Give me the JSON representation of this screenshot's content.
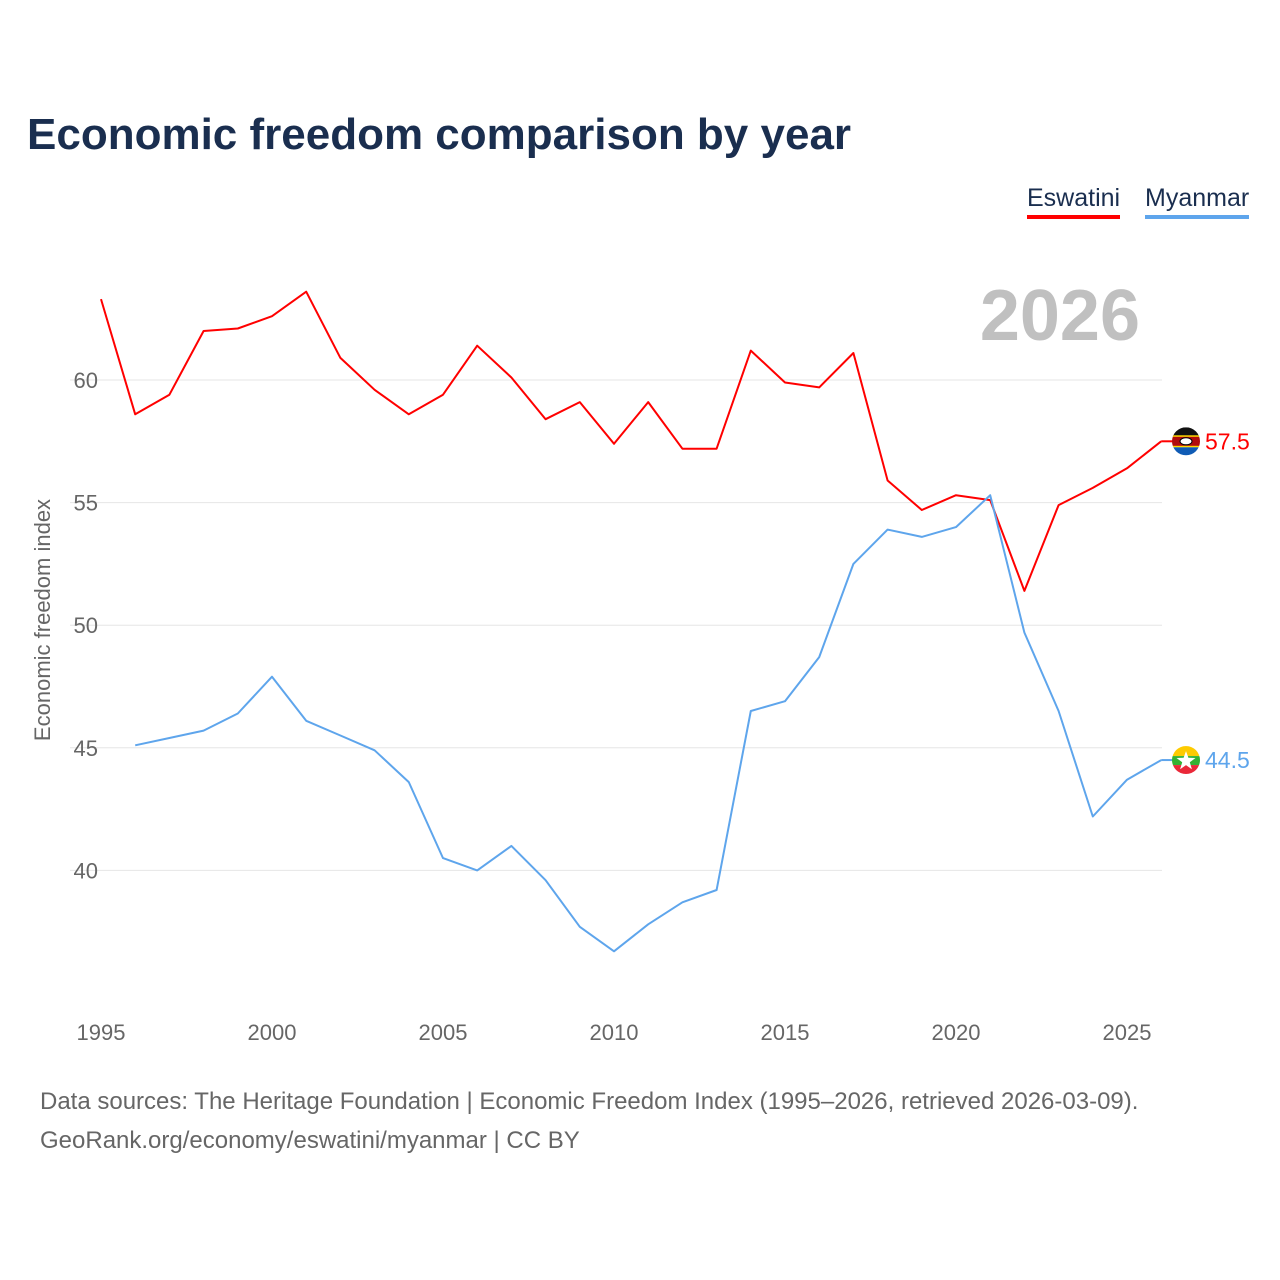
{
  "title": "Economic freedom comparison by year",
  "year_watermark": "2026",
  "footer": {
    "line1": "Data sources: The Heritage Foundation | Economic Freedom Index (1995–2026, retrieved 2026-03-09).",
    "line2": "GeoRank.org/economy/eswatini/myanmar | CC BY"
  },
  "chart_data": {
    "type": "line",
    "title": "Economic freedom comparison by year",
    "xlabel": "",
    "ylabel": "Economic freedom index",
    "xlim": [
      1995,
      2026
    ],
    "ylim": [
      35,
      64
    ],
    "xticks": [
      "1995",
      "2000",
      "2005",
      "2010",
      "2015",
      "2020",
      "2025"
    ],
    "yticks": [
      "40",
      "45",
      "50",
      "55",
      "60"
    ],
    "grid": true,
    "legend_position": "top-right",
    "series": [
      {
        "name": "Eswatini",
        "color": "#ff0000",
        "end_label": "57.5",
        "x": [
          1995,
          1996,
          1997,
          1998,
          1999,
          2000,
          2001,
          2002,
          2003,
          2004,
          2005,
          2006,
          2007,
          2008,
          2009,
          2010,
          2011,
          2012,
          2013,
          2014,
          2015,
          2016,
          2017,
          2018,
          2019,
          2020,
          2021,
          2022,
          2023,
          2024,
          2025,
          2026
        ],
        "values": [
          63.3,
          58.6,
          59.4,
          62.0,
          62.1,
          62.6,
          63.6,
          60.9,
          59.6,
          58.6,
          59.4,
          61.4,
          60.1,
          58.4,
          59.1,
          57.4,
          59.1,
          57.2,
          57.2,
          61.2,
          59.9,
          59.7,
          61.1,
          55.9,
          54.7,
          55.3,
          55.1,
          51.4,
          54.9,
          55.6,
          56.4,
          57.5
        ]
      },
      {
        "name": "Myanmar",
        "color": "#5ea5ec",
        "end_label": "44.5",
        "x": [
          1996,
          1997,
          1998,
          1999,
          2000,
          2001,
          2002,
          2003,
          2004,
          2005,
          2006,
          2007,
          2008,
          2009,
          2010,
          2011,
          2012,
          2013,
          2014,
          2015,
          2016,
          2017,
          2018,
          2019,
          2020,
          2021,
          2022,
          2023,
          2024,
          2025,
          2026
        ],
        "values": [
          45.1,
          45.4,
          45.7,
          46.4,
          47.9,
          46.1,
          45.5,
          44.9,
          43.6,
          40.5,
          40.0,
          41.0,
          39.6,
          37.7,
          36.7,
          37.8,
          38.7,
          39.2,
          46.5,
          46.9,
          48.7,
          52.5,
          53.9,
          53.6,
          54.0,
          55.3,
          49.7,
          46.5,
          42.2,
          43.7,
          44.5
        ]
      }
    ]
  }
}
